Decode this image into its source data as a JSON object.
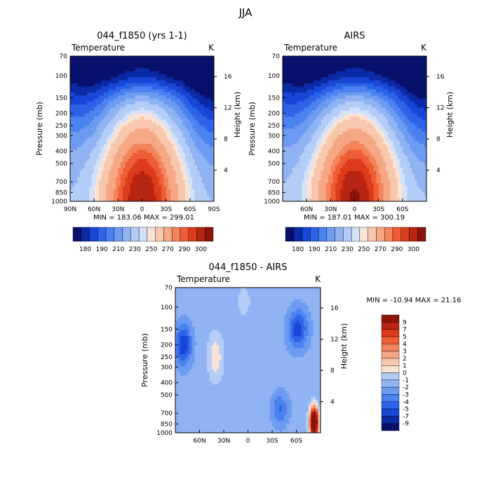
{
  "figure": {
    "suptitle": "JJA",
    "stats_text_min": "MIN = ",
    "stats_text_max": "MAX = "
  },
  "colors": {
    "cold": [
      "#08106b",
      "#0b2aa6",
      "#1846d6",
      "#2c63e9",
      "#4a82ef",
      "#6d9bf1",
      "#8fb3f3",
      "#b3cdf6",
      "#d3e2f9"
    ],
    "warm": [
      "#fae3d5",
      "#f7c8ad",
      "#f6a784",
      "#f4845c",
      "#ef5d36",
      "#dc3c1c",
      "#b82512",
      "#8a140a"
    ]
  },
  "chart_data": [
    {
      "id": "model",
      "type": "heatmap",
      "title": "044_f1850 (yrs 1-1)",
      "subtitle_left": "Temperature",
      "subtitle_right": "K",
      "xlabel": "",
      "ylabel": "Pressure (mb)",
      "ylabel_right": "Height (km)",
      "x_ticks": [
        "90N",
        "60N",
        "30N",
        "0",
        "30S",
        "60S",
        "90S"
      ],
      "x_range": [
        90,
        -90
      ],
      "pressure_levels": [
        "70",
        "100",
        "150",
        "200",
        "250",
        "300",
        "400",
        "500",
        "700",
        "850",
        "1000"
      ],
      "height_ticks": [
        "4",
        "8",
        "12",
        "16"
      ],
      "min": "183.06",
      "max": "299.01",
      "colorbar_labels": [
        "180",
        "190",
        "210",
        "230",
        "250",
        "270",
        "290",
        "300"
      ]
    },
    {
      "id": "airs",
      "type": "heatmap",
      "title": "AIRS",
      "subtitle_left": "Temperature",
      "subtitle_right": "K",
      "xlabel": "",
      "ylabel": "Pressure (mb)",
      "ylabel_right": "Height (km)",
      "x_ticks": [
        "60N",
        "30N",
        "0",
        "30S",
        "60S"
      ],
      "x_range": [
        90,
        -90
      ],
      "pressure_levels": [
        "70",
        "100",
        "150",
        "200",
        "250",
        "300",
        "400",
        "500",
        "700",
        "850",
        "1000"
      ],
      "height_ticks": [
        "4",
        "8",
        "12",
        "16"
      ],
      "min": "187.01",
      "max": "300.19",
      "colorbar_labels": [
        "180",
        "190",
        "210",
        "230",
        "250",
        "270",
        "290",
        "300"
      ]
    },
    {
      "id": "diff",
      "type": "heatmap",
      "title": "044_f1850 - AIRS",
      "subtitle_left": "Temperature",
      "subtitle_right": "K",
      "xlabel": "",
      "ylabel": "Pressure (mb)",
      "ylabel_right": "Height (km)",
      "x_ticks": [
        "60N",
        "30N",
        "0",
        "30S",
        "60S"
      ],
      "x_range": [
        90,
        -90
      ],
      "pressure_levels": [
        "70",
        "100",
        "150",
        "200",
        "250",
        "300",
        "400",
        "500",
        "700",
        "850",
        "1000"
      ],
      "height_ticks": [
        "4",
        "8",
        "12",
        "16"
      ],
      "min": "-10.94",
      "max": "21.16",
      "colorbar_labels": [
        "9",
        "7",
        "5",
        "4",
        "3",
        "2",
        "1",
        "0",
        "-1",
        "-2",
        "-3",
        "-4",
        "-5",
        "-7",
        "-9"
      ]
    }
  ]
}
